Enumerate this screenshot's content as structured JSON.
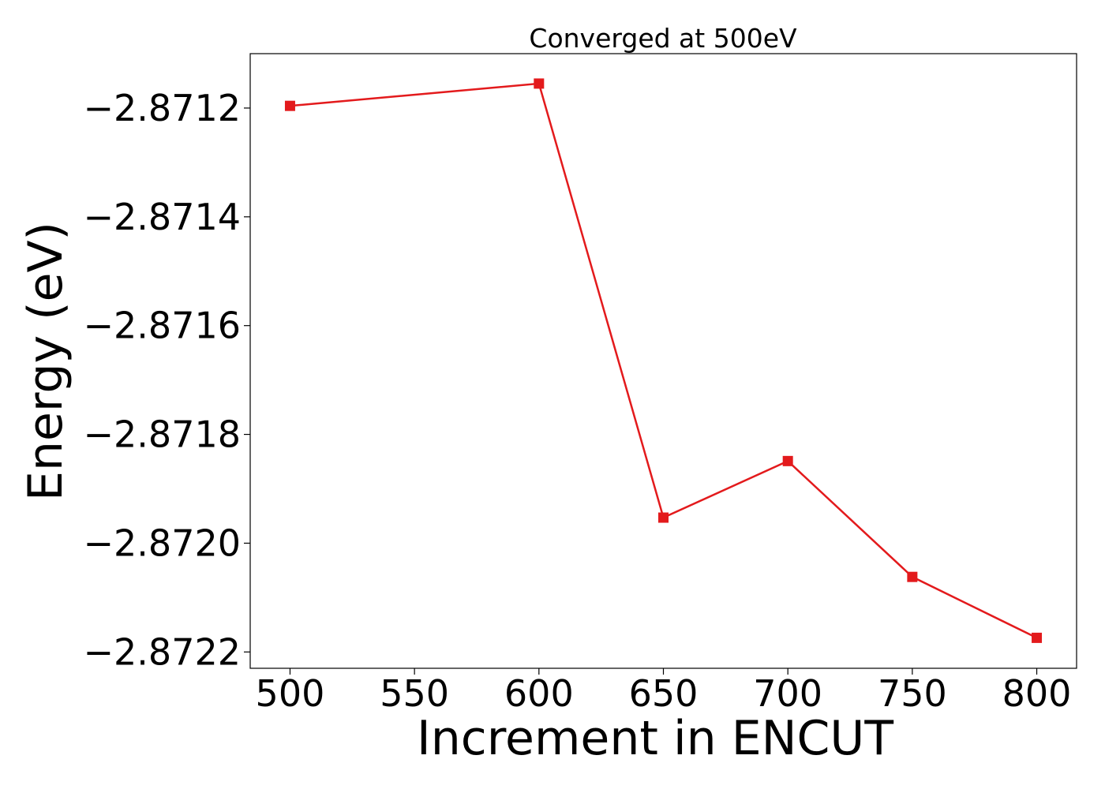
{
  "chart_data": {
    "type": "line",
    "title": "Converged at 500eV",
    "xlabel": "Increment in ENCUT",
    "ylabel": "Energy (eV)",
    "xlim": [
      484,
      816
    ],
    "ylim": [
      -2.87223,
      -2.8711
    ],
    "x_ticks": [
      500,
      550,
      600,
      650,
      700,
      750,
      800
    ],
    "x_tick_labels": [
      "500",
      "550",
      "600",
      "650",
      "700",
      "750",
      "800"
    ],
    "y_ticks": [
      -2.8712,
      -2.8714,
      -2.8716,
      -2.8718,
      -2.872,
      -2.8722
    ],
    "y_tick_labels": [
      "−2.8712",
      "−2.8714",
      "−2.8716",
      "−2.8718",
      "−2.8720",
      "−2.8722"
    ],
    "grid": false,
    "series": [
      {
        "color": "#e31a1c",
        "marker": "square",
        "x": [
          500,
          600,
          650,
          700,
          750,
          800
        ],
        "y": [
          -2.871196,
          -2.871155,
          -2.871953,
          -2.871849,
          -2.872062,
          -2.872174
        ]
      }
    ]
  }
}
